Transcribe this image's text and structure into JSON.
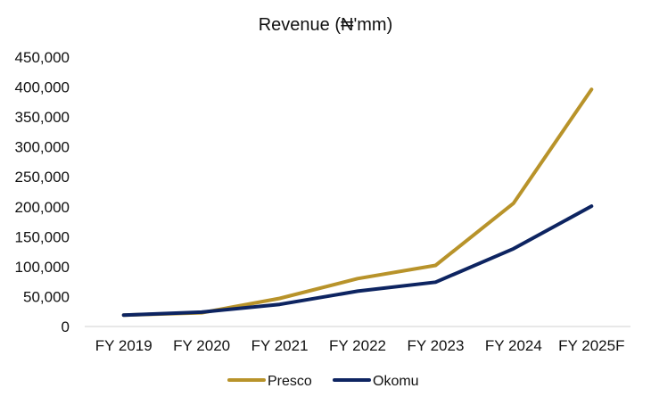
{
  "chart_data": {
    "type": "line",
    "title": "Revenue (₦'mm)",
    "xlabel": "",
    "ylabel": "",
    "categories": [
      "FY 2019",
      "FY 2020",
      "FY 2021",
      "FY 2022",
      "FY 2023",
      "FY 2024",
      "FY 2025F"
    ],
    "ylim": [
      0,
      450000
    ],
    "yticks": [
      "0",
      "50,000",
      "100,000",
      "150,000",
      "200,000",
      "250,000",
      "300,000",
      "350,000",
      "400,000",
      "450,000"
    ],
    "grid": false,
    "legend_position": "bottom",
    "series": [
      {
        "name": "Presco",
        "color": "#b8932a",
        "values": [
          19000,
          23000,
          47000,
          80000,
          102000,
          206000,
          396000
        ]
      },
      {
        "name": "Okomu",
        "color": "#0d2461",
        "values": [
          19000,
          24000,
          37000,
          59000,
          74000,
          130000,
          201000
        ]
      }
    ]
  }
}
